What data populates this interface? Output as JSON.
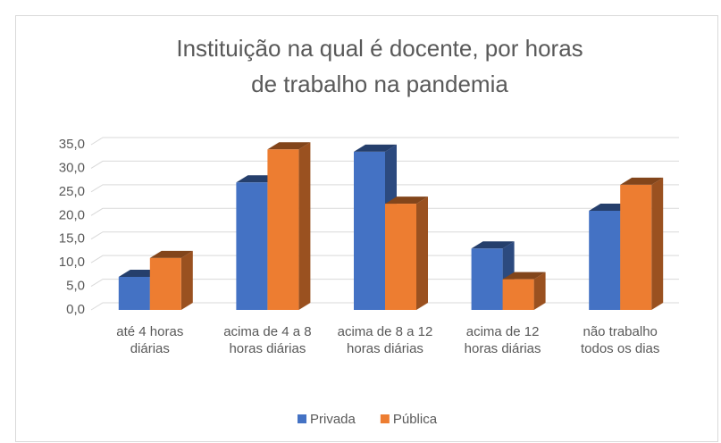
{
  "chart_data": {
    "type": "bar3d",
    "title": "Instituição na qual é docente, por horas de trabalho na pandemia",
    "categories": [
      "até 4 horas diárias",
      "acima de 4  a 8 horas diárias",
      "acima de 8 a 12 horas diárias",
      "acima de 12 horas diárias",
      "não trabalho todos os dias"
    ],
    "series": [
      {
        "name": "Privada",
        "color": "#4472c4",
        "values": [
          7.0,
          27.0,
          33.5,
          13.0,
          21.0
        ]
      },
      {
        "name": "Pública",
        "color": "#ed7d31",
        "values": [
          11.0,
          34.0,
          22.5,
          6.5,
          26.5
        ]
      }
    ],
    "ylim": [
      0,
      35
    ],
    "yticks": [
      {
        "value": 0,
        "label": "0,0"
      },
      {
        "value": 5,
        "label": "5,0"
      },
      {
        "value": 10,
        "label": "10,0"
      },
      {
        "value": 15,
        "label": "15,0"
      },
      {
        "value": 20,
        "label": "20,0"
      },
      {
        "value": 25,
        "label": "25,0"
      },
      {
        "value": 30,
        "label": "30,0"
      },
      {
        "value": 35,
        "label": "35,0"
      }
    ],
    "grid": true,
    "legend": "bottom"
  }
}
